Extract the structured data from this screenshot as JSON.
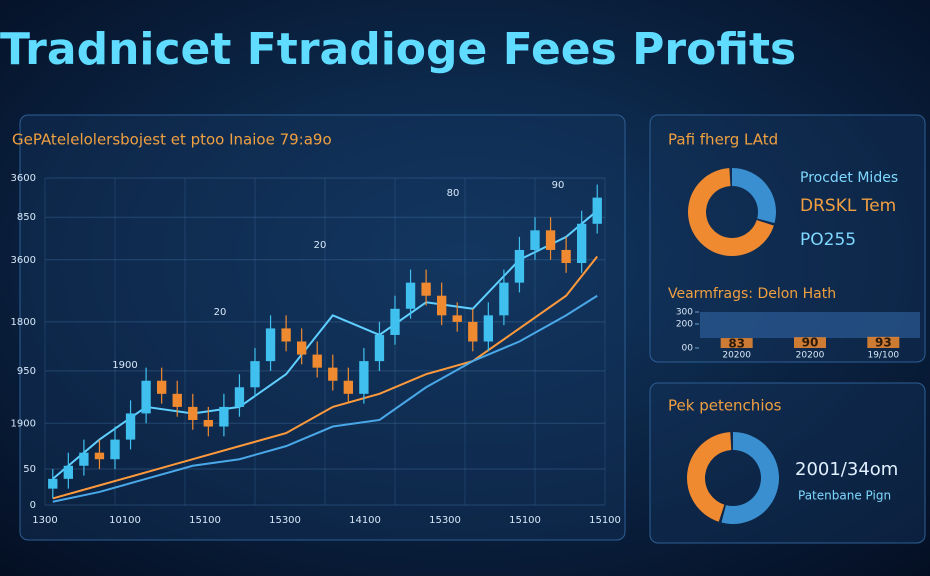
{
  "title": "Tradnicet Ftradioge Fees Profits",
  "chart_data": [
    {
      "type": "candlestick",
      "title": "GePAtelelolersbojest et ptoo Inaioe 79:a9o",
      "open": [
        5,
        8,
        12,
        16,
        14,
        20,
        28,
        38,
        34,
        30,
        26,
        24,
        30,
        36,
        44,
        54,
        50,
        46,
        42,
        38,
        34,
        44,
        52,
        60,
        68,
        64,
        58,
        56,
        50,
        58,
        68,
        78,
        84,
        78,
        74,
        86
      ],
      "close": [
        8,
        12,
        16,
        14,
        20,
        28,
        38,
        34,
        30,
        26,
        24,
        30,
        36,
        44,
        54,
        50,
        46,
        42,
        38,
        34,
        44,
        52,
        60,
        68,
        64,
        58,
        56,
        50,
        58,
        68,
        78,
        84,
        78,
        74,
        86,
        94
      ],
      "high": [
        11,
        16,
        20,
        20,
        24,
        32,
        42,
        42,
        38,
        34,
        30,
        34,
        40,
        48,
        58,
        58,
        54,
        50,
        46,
        42,
        48,
        56,
        64,
        72,
        72,
        68,
        62,
        60,
        62,
        72,
        82,
        88,
        88,
        82,
        90,
        98
      ],
      "low": [
        2,
        5,
        9,
        11,
        11,
        17,
        25,
        31,
        27,
        23,
        21,
        21,
        27,
        33,
        41,
        47,
        43,
        39,
        35,
        31,
        31,
        41,
        49,
        57,
        61,
        55,
        53,
        47,
        47,
        55,
        65,
        75,
        75,
        71,
        71,
        83
      ],
      "up_color": "#3fc0ee",
      "down_color": "#f08a30",
      "ylim": [
        0,
        100
      ],
      "yticks": [
        {
          "value": 100,
          "label": "3600"
        },
        {
          "value": 88,
          "label": "850"
        },
        {
          "value": 75,
          "label": "3600"
        },
        {
          "value": 56,
          "label": "1800"
        },
        {
          "value": 41,
          "label": "950"
        },
        {
          "value": 25,
          "label": "1900"
        },
        {
          "value": 11,
          "label": "50"
        },
        0
      ],
      "xtick_labels": [
        "1300",
        "10100",
        "15100",
        "15300",
        "14100",
        "15300",
        "15100",
        "15100"
      ],
      "peak_labels": [
        "1900",
        "20",
        "20",
        "80",
        "90"
      ],
      "grid": true,
      "lines": {
        "x": [
          0,
          3,
          6,
          9,
          12,
          15,
          18,
          21,
          24,
          27,
          30,
          33,
          35
        ],
        "series": [
          {
            "color": "#5fd0ff",
            "values": [
              8,
              20,
              30,
              28,
              30,
              40,
              58,
              52,
              62,
              60,
              75,
              82,
              90
            ]
          },
          {
            "color": "#ff9a3c",
            "values": [
              2,
              6,
              10,
              14,
              18,
              22,
              30,
              34,
              40,
              44,
              54,
              64,
              76
            ]
          },
          {
            "color": "#4aa8e8",
            "values": [
              1,
              4,
              8,
              12,
              14,
              18,
              24,
              26,
              36,
              44,
              50,
              58,
              64
            ]
          }
        ]
      }
    },
    {
      "type": "donut",
      "title": "Pafi fherg LAtd",
      "values": [
        30,
        70
      ],
      "colors": [
        "#3a8fd0",
        "#f08a30"
      ],
      "notes": [
        "Procdet Mides",
        "DRSKL Tem",
        "PO255"
      ]
    },
    {
      "type": "bar",
      "title": "Vearmfrags: Delon Hath",
      "categories": [
        "20200",
        "20200",
        "19/100"
      ],
      "values": [
        83,
        90,
        93
      ],
      "value_labels": [
        "83",
        "90",
        "93"
      ],
      "color": "#f08a30",
      "ylim": [
        0,
        300
      ],
      "yticks": [
        300,
        200,
        {
          "value": 0,
          "label": "00"
        }
      ]
    },
    {
      "type": "donut",
      "title": "Pek petenchios",
      "values": [
        55,
        45
      ],
      "colors": [
        "#3a8fd0",
        "#f08a30"
      ],
      "notes": [
        "2001/34om",
        "Patenbane Pign"
      ]
    }
  ]
}
